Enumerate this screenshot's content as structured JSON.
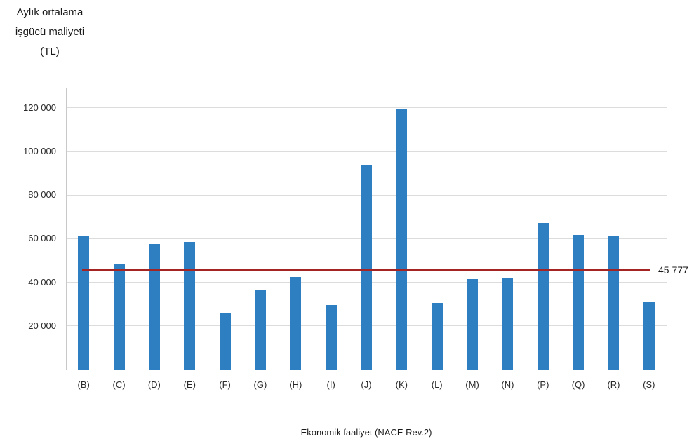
{
  "chart_data": {
    "type": "bar",
    "title": "Aylık ortalama işgücü maliyeti (TL)",
    "title_lines": [
      "Aylık ortalama",
      "işgücü maliyeti",
      "(TL)"
    ],
    "xlabel": "Ekonomik faaliyet (NACE Rev.2)",
    "ylabel": "Aylık ortalama işgücü maliyeti (TL)",
    "categories": [
      "(B)",
      "(C)",
      "(D)",
      "(E)",
      "(F)",
      "(G)",
      "(H)",
      "(I)",
      "(J)",
      "(K)",
      "(L)",
      "(M)",
      "(N)",
      "(P)",
      "(Q)",
      "(R)",
      "(S)"
    ],
    "values": [
      61500,
      48300,
      57600,
      58400,
      25900,
      36400,
      42500,
      29500,
      94000,
      119800,
      30700,
      41600,
      41800,
      67300,
      61700,
      61100,
      30800
    ],
    "yticks": {
      "values": [
        20000,
        40000,
        60000,
        80000,
        100000,
        120000
      ],
      "labels": [
        "20 000",
        "40 000",
        "60 000",
        "80 000",
        "100 000",
        "120 000"
      ]
    },
    "ylim": [
      0,
      129300
    ],
    "grid": true,
    "legend": "none",
    "bar_color": "#2e7fc1",
    "reference_line": {
      "value": 45777,
      "label": "45 777",
      "color": "#a32422"
    }
  }
}
